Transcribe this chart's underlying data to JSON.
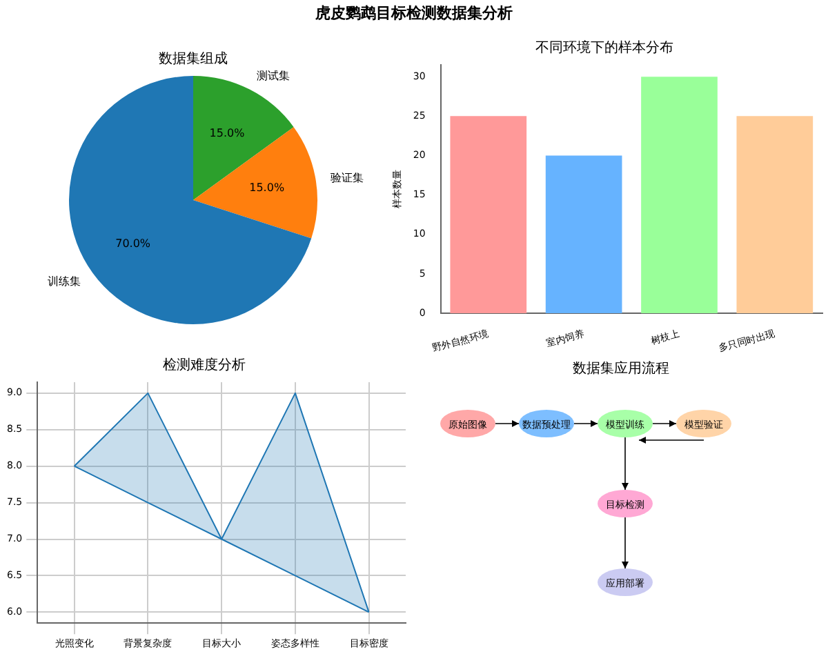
{
  "chart_data": [
    {
      "type": "pie",
      "title": "数据集组成",
      "categories": [
        "测试集",
        "验证集",
        "训练集"
      ],
      "values": [
        15,
        15,
        70
      ],
      "colors": [
        "#2ca02c",
        "#ff7f0e",
        "#1f77b4"
      ],
      "value_labels": [
        "15.0%",
        "15.0%",
        "70.0%"
      ],
      "legend": false,
      "annotations": [
        "虎皮鹦鹉目标检测数据集分析"
      ]
    },
    {
      "type": "bar",
      "title": "不同环境下的样本分布",
      "ylabel": "样本数量",
      "categories": [
        "野外自然环境",
        "室内饲养",
        "树枝上",
        "多只同时出现"
      ],
      "values": [
        25,
        20,
        30,
        25
      ],
      "colors": [
        "#ff9999",
        "#66b3ff",
        "#99ff99",
        "#ffcc99"
      ],
      "ylim": [
        0,
        31.5
      ],
      "yticks": [
        0,
        5,
        10,
        15,
        20,
        25,
        30
      ],
      "legend": false,
      "grid": false
    },
    {
      "type": "line",
      "title": "检测难度分析",
      "categories": [
        "光照变化",
        "背景复杂度",
        "目标大小",
        "姿态多样性",
        "目标密度"
      ],
      "series": [
        {
          "color": "#1f77b4",
          "values": [
            8,
            9,
            7,
            9,
            6
          ],
          "lower": [
            8,
            7.5,
            7,
            6.5,
            6
          ],
          "upper": [
            8,
            9,
            7,
            9,
            6
          ]
        },
        {
          "color": "#1f77b4",
          "values": [
            8,
            7.5,
            7,
            6.5,
            6
          ]
        }
      ],
      "ylim": [
        5.85,
        9.15
      ],
      "yticks": [
        {
          "value": 6,
          "label": "6.0"
        },
        6.5,
        {
          "value": 7,
          "label": "7.0"
        },
        7.5,
        {
          "value": 8,
          "label": "8.0"
        },
        8.5,
        {
          "value": 9,
          "label": "9.0"
        }
      ],
      "grid": true,
      "legend": false,
      "marker": "none"
    },
    {
      "type": "other",
      "title": "数据集应用流程",
      "annotations": [
        "原始图像",
        "数据预处理",
        "模型训练",
        "模型验证",
        "目标检测",
        "应用部署"
      ]
    }
  ]
}
